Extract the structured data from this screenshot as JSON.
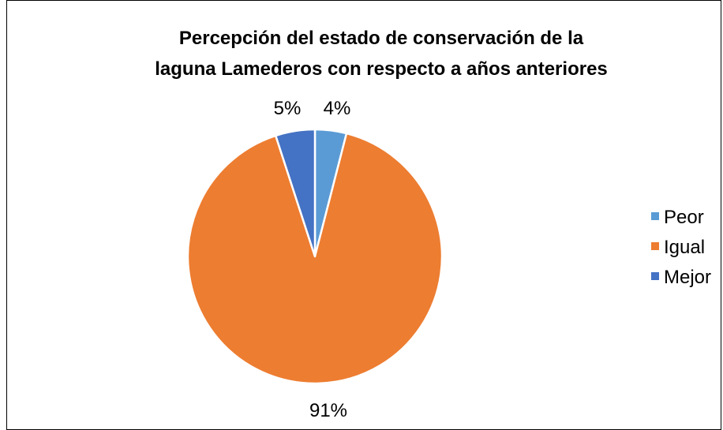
{
  "chart_data": {
    "type": "pie",
    "title": "Percepción del estado de conservación de la laguna Lamederos con respecto a años anteriores",
    "title_lines": [
      "Percepción del estado de conservación de la",
      "laguna Lamederos con respecto a años anteriores"
    ],
    "categories": [
      "Peor",
      "Igual",
      "Mejor"
    ],
    "values": [
      4,
      91,
      5
    ],
    "data_labels": [
      "4%",
      "91%",
      "5%"
    ],
    "colors": [
      "#5b9bd5",
      "#ed7d31",
      "#4472c4"
    ],
    "legend": {
      "position": "right",
      "entries": [
        "Peor",
        "Igual",
        "Mejor"
      ]
    }
  }
}
